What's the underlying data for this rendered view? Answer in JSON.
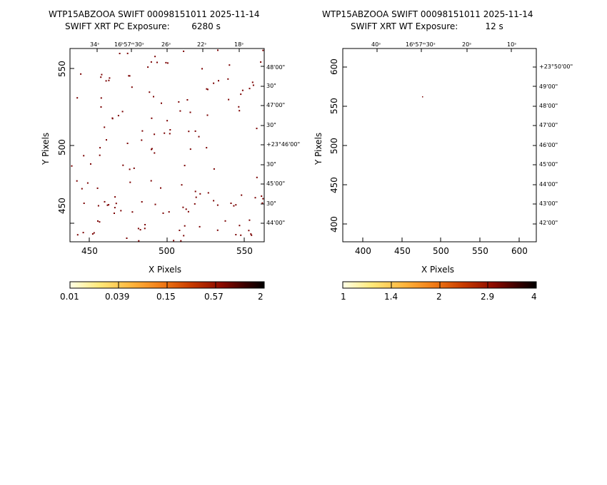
{
  "panels": [
    {
      "title_line1": "WTP15ABZOOA SWIFT 00098151011 2025-11-14",
      "title_line2": "SWIFT XRT PC Exposure:        6280 s",
      "xlabel": "X Pixels",
      "ylabel": "Y Pixels",
      "x_ticks": [
        "450",
        "500",
        "550"
      ],
      "y_ticks": [
        "450",
        "500",
        "550"
      ],
      "ra_ticks": [
        "34ˢ",
        "16ʰ57ᵐ30ˢ",
        "26ˢ",
        "22ˢ",
        "18ˢ"
      ],
      "dec_ticks": [
        "48'00\"",
        "30\"",
        "47'00\"",
        "30\"",
        "+23°46'00\"",
        "30\"",
        "45'00\"",
        "30\"",
        "44'00\""
      ],
      "colorbar_ticks": [
        "0.01",
        "0.039",
        "0.15",
        "0.57",
        "2"
      ],
      "event_count": 150
    },
    {
      "title_line1": "WTP15ABZOOA SWIFT 00098151011 2025-11-14",
      "title_line2": "SWIFT XRT WT Exposure:          12 s",
      "xlabel": "X Pixels",
      "ylabel": "Y Pixels",
      "x_ticks": [
        "400",
        "450",
        "500",
        "550",
        "600"
      ],
      "y_ticks": [
        "400",
        "450",
        "500",
        "550",
        "600"
      ],
      "ra_ticks": [
        "40ˢ",
        "16ʰ57ᵐ30ˢ",
        "20ˢ",
        "10ˢ"
      ],
      "dec_ticks": [
        "+23°50'00\"",
        "49'00\"",
        "48'00\"",
        "47'00\"",
        "46'00\"",
        "45'00\"",
        "44'00\"",
        "43'00\"",
        "42'00\""
      ],
      "colorbar_ticks": [
        "1",
        "1.4",
        "2",
        "2.9",
        "4"
      ],
      "event_count": 1
    }
  ],
  "colors": {
    "event": "#7a0000",
    "colormap": [
      "#ffffe6",
      "#ffe97a",
      "#ffb43c",
      "#f07814",
      "#c83c00",
      "#8c0a00",
      "#3c0000",
      "#000000"
    ]
  }
}
